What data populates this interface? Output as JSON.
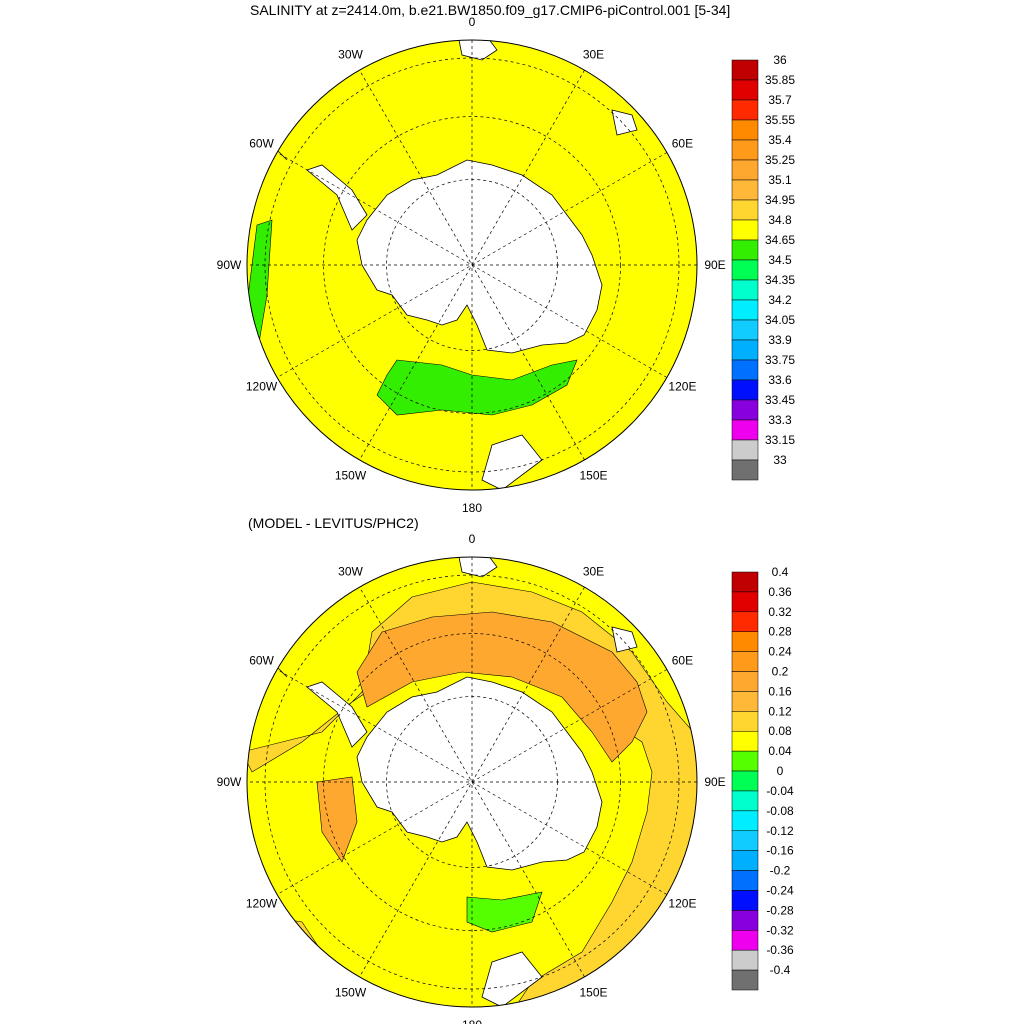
{
  "titles": {
    "main": "SALINITY at z=2414.0m, b.e21.BW1850.f09_g17.CMIP6-piControl.001 [5-34]",
    "difference": "(MODEL - LEVITUS/PHC2)"
  },
  "map_labels": [
    "0",
    "30E",
    "60E",
    "90E",
    "120E",
    "150E",
    "180",
    "150W",
    "120W",
    "90W",
    "60W",
    "30W"
  ],
  "colorbars": {
    "salinity": {
      "labels": [
        "36",
        "35.85",
        "35.7",
        "35.55",
        "35.4",
        "35.25",
        "35.1",
        "34.95",
        "34.8",
        "34.65",
        "34.5",
        "34.35",
        "34.2",
        "34.05",
        "33.9",
        "33.75",
        "33.6",
        "33.45",
        "33.3",
        "33.15",
        "33"
      ],
      "colors": [
        "#c00000",
        "#e00000",
        "#ff2a00",
        "#ff8a00",
        "#ff9a1a",
        "#ffa830",
        "#ffb838",
        "#ffd530",
        "#ffff00",
        "#33ee00",
        "#00ff55",
        "#00ffcc",
        "#00eeff",
        "#11ccff",
        "#00b0ff",
        "#0070ff",
        "#0010ff",
        "#8800dd",
        "#ee00ee",
        "#cccccc",
        "#707070"
      ]
    },
    "difference": {
      "labels": [
        "0.4",
        "0.36",
        "0.32",
        "0.28",
        "0.24",
        "0.2",
        "0.16",
        "0.12",
        "0.08",
        "0.04",
        "0",
        "-0.04",
        "-0.08",
        "-0.12",
        "-0.16",
        "-0.2",
        "-0.24",
        "-0.28",
        "-0.32",
        "-0.36",
        "-0.4"
      ],
      "colors": [
        "#c00000",
        "#e00000",
        "#ff2a00",
        "#ff8a00",
        "#ff9a1a",
        "#ffa830",
        "#ffb838",
        "#ffd530",
        "#ffff00",
        "#55ff00",
        "#00ff55",
        "#00ffcc",
        "#00eeff",
        "#11ccff",
        "#00b0ff",
        "#0070ff",
        "#0010ff",
        "#8800dd",
        "#ee00ee",
        "#cccccc",
        "#707070"
      ]
    }
  },
  "fill_colors": {
    "land": "#ffffff",
    "salinity_main": "#ffff00",
    "salinity_low": "#33ee00",
    "diff_main": "#ffff00",
    "diff_mid": "#ffd530",
    "diff_high": "#ffa830",
    "diff_neg": "#55ff00"
  }
}
